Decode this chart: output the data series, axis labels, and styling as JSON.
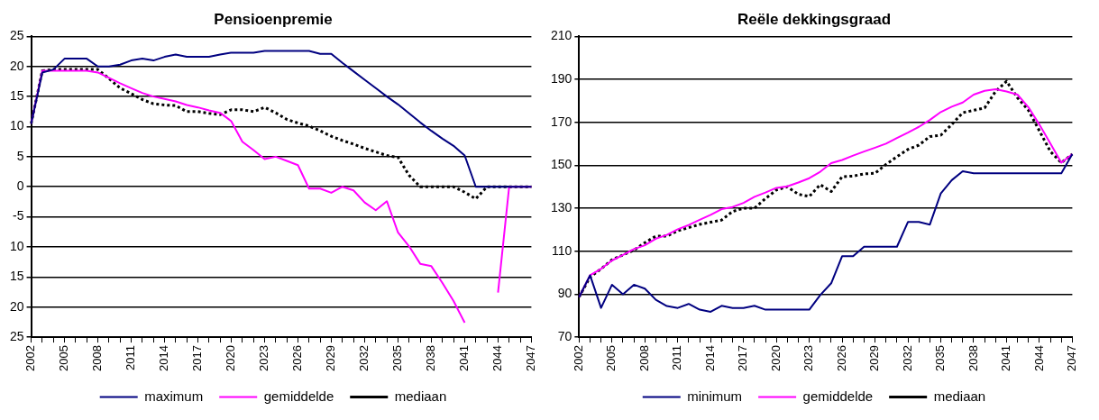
{
  "chart_data": [
    {
      "type": "line",
      "title": "Pensioenpremie",
      "categories": [
        "2002",
        null,
        null,
        "2005",
        null,
        null,
        "2008",
        null,
        null,
        "2011",
        null,
        null,
        "2014",
        null,
        null,
        "2017",
        null,
        null,
        "2020",
        null,
        null,
        "2023",
        null,
        null,
        "2026",
        null,
        null,
        "2029",
        null,
        null,
        "2032",
        null,
        null,
        "2035",
        null,
        null,
        "2038",
        null,
        null,
        "2041",
        null,
        null,
        "2044",
        null,
        null,
        "2047"
      ],
      "series": [
        {
          "name": "maximum",
          "color": "#000080",
          "line_style": "solid",
          "values": [
            10.5,
            19,
            19.5,
            21.3,
            21.3,
            21.3,
            20,
            20,
            20.3,
            21,
            21.3,
            21,
            21.6,
            22,
            21.6,
            21.6,
            21.6,
            22,
            22.3,
            22.3,
            22.3,
            22.6,
            22.6,
            22.6,
            22.6,
            22.6,
            22.1,
            22.1,
            20.6,
            19.2,
            17.8,
            16.4,
            15,
            13.7,
            12.2,
            10.7,
            9.3,
            8,
            6.8,
            5.2,
            0,
            0,
            0,
            0,
            0,
            0
          ]
        },
        {
          "name": "gemiddelde",
          "color": "#ff00ff",
          "line_style": "solid",
          "values": [
            10.5,
            19.3,
            19.3,
            19.3,
            19.3,
            19.3,
            19,
            18.1,
            17.2,
            16.4,
            15.6,
            15,
            14.6,
            14.2,
            13.6,
            13.2,
            12.7,
            12.3,
            10.9,
            7.5,
            6.1,
            4.6,
            5,
            4.3,
            3.6,
            -0.3,
            -0.3,
            -1,
            0,
            -0.6,
            -2.6,
            -3.9,
            -2.4,
            -7.6,
            -9.9,
            -12.8,
            -13.2,
            -16,
            -19,
            -22.6,
            null,
            null,
            -17.6,
            0,
            0,
            0
          ]
        },
        {
          "name": "mediaan",
          "color": "#000000",
          "line_style": "dotted",
          "values": [
            10.5,
            19.3,
            19.5,
            19.5,
            19.5,
            19.5,
            19.5,
            18,
            16.4,
            15.5,
            14.5,
            13.8,
            13.6,
            13.5,
            12.5,
            12.5,
            12.2,
            12,
            12.8,
            12.8,
            12.5,
            13.2,
            12.3,
            11.2,
            10.6,
            10.1,
            9.3,
            8.4,
            7.7,
            7.1,
            6.4,
            5.8,
            5.2,
            4.9,
            1.9,
            0,
            0,
            0,
            0,
            -0.9,
            -2,
            0,
            0,
            0,
            0,
            0
          ]
        }
      ],
      "ylim": [
        -25,
        25
      ],
      "yticks": [
        25,
        20,
        15,
        10,
        5,
        0,
        -5,
        {
          "value": -10,
          "label": "10"
        },
        {
          "value": -15,
          "label": "15"
        },
        {
          "value": -20,
          "label": "20"
        },
        {
          "value": -25,
          "label": "25"
        }
      ],
      "grid": "y",
      "legend": "bottom",
      "marker": "none"
    },
    {
      "type": "line",
      "title": "Reële dekkingsgraad",
      "categories": [
        "2002",
        null,
        null,
        "2005",
        null,
        null,
        "2008",
        null,
        null,
        "2011",
        null,
        null,
        "2014",
        null,
        null,
        "2017",
        null,
        null,
        "2020",
        null,
        null,
        "2023",
        null,
        null,
        "2026",
        null,
        null,
        "2029",
        null,
        null,
        "2032",
        null,
        null,
        "2035",
        null,
        null,
        "2038",
        null,
        null,
        "2041",
        null,
        null,
        "2044",
        null,
        null,
        "2047"
      ],
      "series": [
        {
          "name": "minimum",
          "color": "#000080",
          "line_style": "solid",
          "values": [
            88.7,
            98.8,
            83.6,
            94.4,
            90,
            94.4,
            92.6,
            87.4,
            84.5,
            83.6,
            85.5,
            82.8,
            81.8,
            84.6,
            83.6,
            83.6,
            84.6,
            82.8,
            82.8,
            82.8,
            82.8,
            82.8,
            89.6,
            95.1,
            107.7,
            107.7,
            112.1,
            112.1,
            112.1,
            112.1,
            123.6,
            123.6,
            122.4,
            136.9,
            143.1,
            147.2,
            146.3,
            146.3,
            146.3,
            146.3,
            146.3,
            146.3,
            146.3,
            146.3,
            146.3,
            155.2
          ]
        },
        {
          "name": "gemiddelde",
          "color": "#ff00ff",
          "line_style": "solid",
          "values": [
            88.7,
            98.8,
            101.8,
            105.7,
            108.3,
            111,
            112.8,
            115.8,
            117.6,
            120.2,
            122.2,
            124.6,
            126.9,
            129.6,
            130.6,
            132.5,
            135.3,
            137.3,
            139.5,
            140.2,
            142,
            144,
            147,
            151,
            152.5,
            154.5,
            156.4,
            158.2,
            160.1,
            162.7,
            165.2,
            167.9,
            171.1,
            174.8,
            177.3,
            179.2,
            182.9,
            184.7,
            185.4,
            184.4,
            182.9,
            177,
            168.9,
            160.1,
            151.2,
            155.2
          ]
        },
        {
          "name": "mediaan",
          "color": "#000000",
          "line_style": "dotted",
          "values": [
            88.7,
            98,
            101.8,
            106,
            108.3,
            110.5,
            114,
            117,
            117,
            119.5,
            121,
            122.5,
            123.5,
            124.5,
            128.5,
            130,
            130,
            134.5,
            138.5,
            140,
            136.5,
            135.5,
            141,
            137.8,
            144.7,
            145,
            146,
            146.3,
            150.4,
            154,
            157.4,
            159.4,
            163.4,
            164,
            169,
            174.5,
            175.6,
            176.7,
            184.4,
            189.1,
            181.4,
            175.6,
            166,
            156.4,
            151.2,
            155.2
          ]
        }
      ],
      "ylim": [
        70,
        210
      ],
      "yticks": [
        70,
        90,
        110,
        130,
        150,
        170,
        190,
        210
      ],
      "grid": "y",
      "legend": "bottom",
      "marker": "none"
    }
  ]
}
